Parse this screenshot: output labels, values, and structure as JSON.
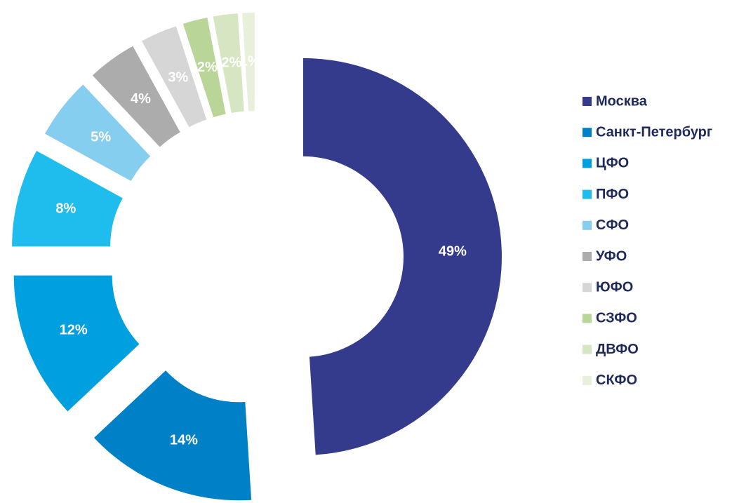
{
  "chart_data": {
    "type": "donut",
    "categories": [
      "Москва",
      "Санкт-Петербург",
      "ЦФО",
      "ПФО",
      "СФО",
      "УФО",
      "ЮФО",
      "СЗФО",
      "ДВФО",
      "СКФО"
    ],
    "values": [
      49,
      14,
      12,
      8,
      5,
      4,
      3,
      2,
      2,
      1
    ],
    "value_labels": [
      "49%",
      "14%",
      "12%",
      "8%",
      "5%",
      "4%",
      "3%",
      "2%",
      "2%",
      "1%"
    ],
    "colors": [
      "#343b8c",
      "#0080c6",
      "#00a0e0",
      "#1fbcee",
      "#86cef0",
      "#acacac",
      "#d6d6d6",
      "#b9d597",
      "#d6e6c2",
      "#e8f0dc"
    ],
    "legend": "right"
  }
}
